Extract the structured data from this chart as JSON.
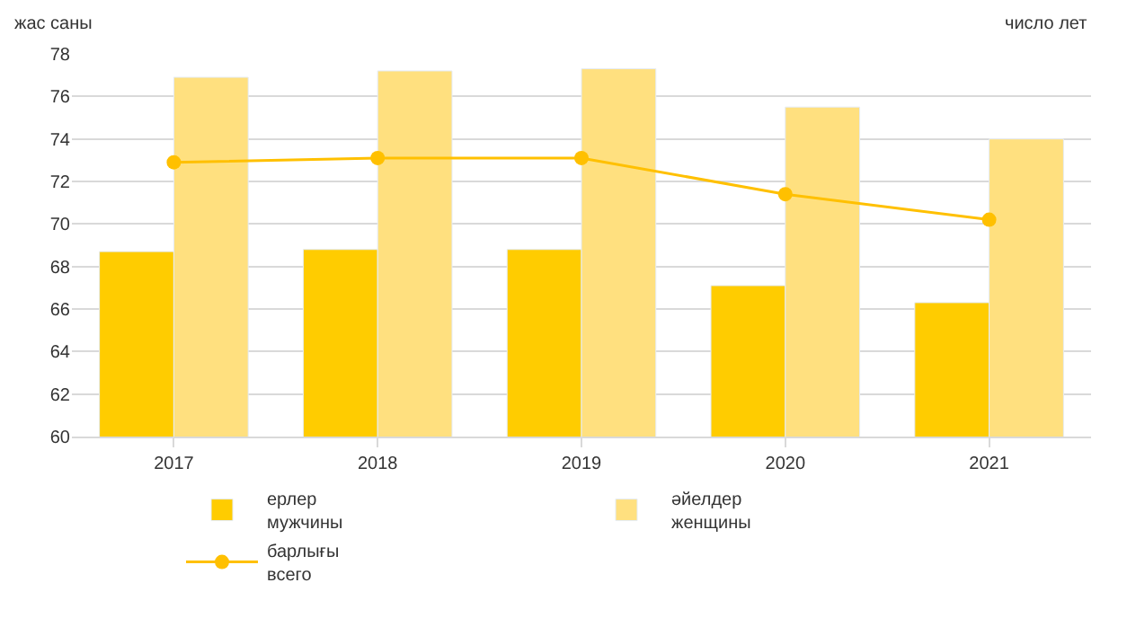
{
  "chart_data": {
    "type": "bar",
    "ylabel": "жас саны",
    "annotations": [
      "число лет"
    ],
    "categories": [
      "2017",
      "2018",
      "2019",
      "2020",
      "2021"
    ],
    "series": [
      {
        "name": "ерлер\nмужчины",
        "color": "#ffcc00",
        "values": [
          68.7,
          68.8,
          68.8,
          67.1,
          66.3
        ]
      },
      {
        "name": "әйелдер\nженщины",
        "color": "#ffe07f",
        "values": [
          76.9,
          77.2,
          77.3,
          75.5,
          74.0
        ]
      },
      {
        "name": "барлығы\nвсего",
        "type": "line",
        "color": "#ffc000",
        "values": [
          72.9,
          73.1,
          73.1,
          71.4,
          70.2
        ]
      }
    ],
    "ylim": [
      60,
      78
    ],
    "yticks": [
      60,
      62,
      64,
      66,
      68,
      70,
      72,
      74,
      76,
      78
    ],
    "grid": "y",
    "legend": "bottom",
    "marker": "circle"
  }
}
